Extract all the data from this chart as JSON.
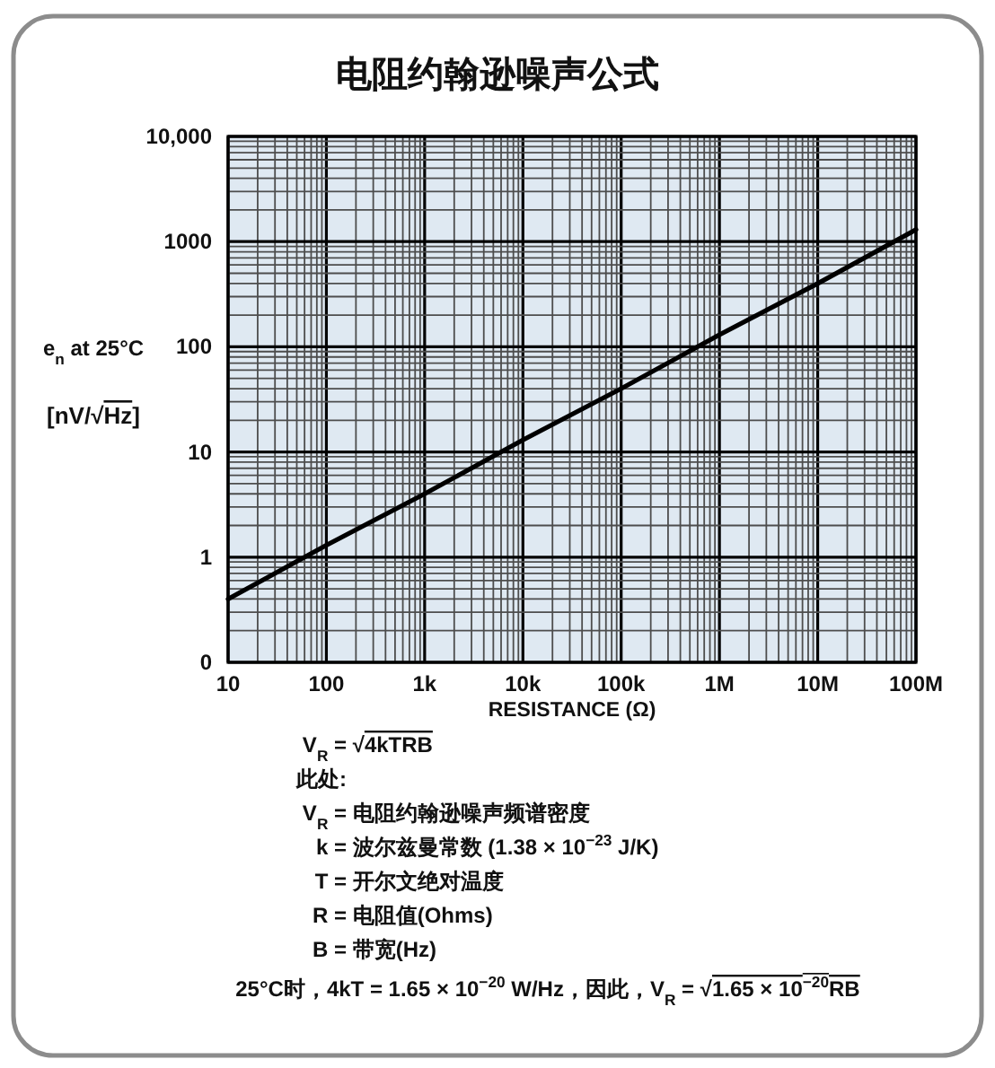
{
  "chart_data": {
    "type": "line",
    "title": "电阻约翰逊噪声公式",
    "xlabel": "RESISTANCE (Ω)",
    "ylabel": "e$_{n}$ at 25°C [nV/√Hz]",
    "x": [
      10,
      100,
      1000,
      10000,
      100000,
      1000000,
      10000000,
      100000000
    ],
    "series": [
      {
        "color": "#000000",
        "values": [
          0.4,
          1.3,
          4,
          13,
          40,
          130,
          400,
          1300
        ]
      }
    ],
    "log": "xy",
    "xlim": [
      10,
      100000000
    ],
    "ylim": [
      0.1,
      10000
    ],
    "xticks": [
      10,
      100,
      {
        "value": 1000,
        "label": "1k"
      },
      {
        "value": 10000,
        "label": "10k"
      },
      {
        "value": 100000,
        "label": "100k"
      },
      {
        "value": 1000000,
        "label": "1M"
      },
      {
        "value": 10000000,
        "label": "10M"
      },
      {
        "value": 100000000,
        "label": "100M"
      }
    ],
    "yticks": [
      {
        "value": 0.1,
        "label": "0"
      },
      1,
      10,
      100,
      1000,
      {
        "value": 10000,
        "label": "10,000"
      }
    ],
    "grid": true,
    "annotations": [
      "V$_{R}$ = √4kTRB",
      "此处:",
      "V$_{R}$ = 电阻约翰逊噪声频谱密度",
      "k = 波尔兹曼常数 (1.38 × 10$^{−23}$ J/K)",
      "T = 开尔文绝对温度",
      "R = 电阻值(Ohms)",
      "B = 带宽(Hz)",
      "25°C时，4kT = 1.65 × 10$^{−20}$ W/Hz，因此，V$_{R}$ = √1.65 × 10$^{−20}$RB"
    ]
  }
}
